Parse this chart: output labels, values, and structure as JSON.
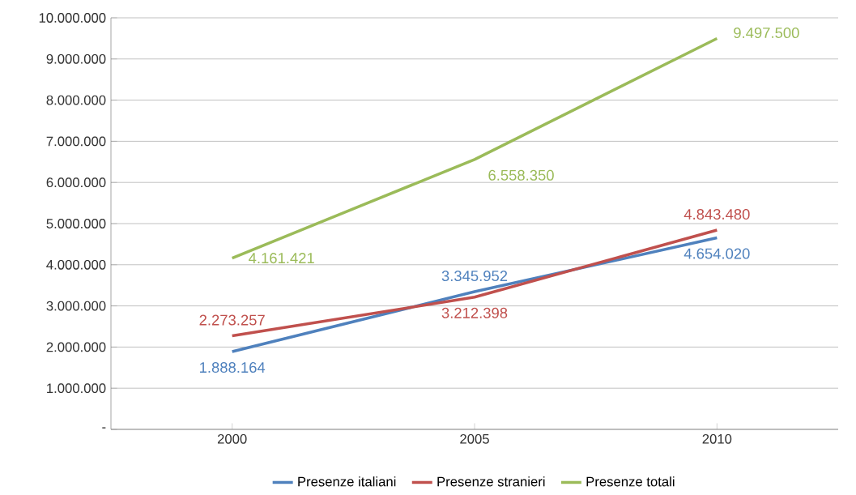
{
  "chart_data": {
    "type": "line",
    "categories": [
      "2000",
      "2005",
      "2010"
    ],
    "series": [
      {
        "name": "Presenze italiani",
        "color": "#4f81bd",
        "values": [
          1888164,
          3345952,
          4654020
        ],
        "value_labels": [
          "1.888.164",
          "3.345.952",
          "4.654.020"
        ]
      },
      {
        "name": "Presenze stranieri",
        "color": "#c0504d",
        "values": [
          2273257,
          3212398,
          4843480
        ],
        "value_labels": [
          "2.273.257",
          "3.212.398",
          "4.843.480"
        ]
      },
      {
        "name": "Presenze totali",
        "color": "#9bbb59",
        "values": [
          4161421,
          6558350,
          9497500
        ],
        "value_labels": [
          "4.161.421",
          "6.558.350",
          "9.497.500"
        ]
      }
    ],
    "ylim": [
      0,
      10000000
    ],
    "yticks": [
      {
        "value": 0,
        "label": "-"
      },
      {
        "value": 1000000,
        "label": "1.000.000"
      },
      {
        "value": 2000000,
        "label": "2.000.000"
      },
      {
        "value": 3000000,
        "label": "3.000.000"
      },
      {
        "value": 4000000,
        "label": "4.000.000"
      },
      {
        "value": 5000000,
        "label": "5.000.000"
      },
      {
        "value": 6000000,
        "label": "6.000.000"
      },
      {
        "value": 7000000,
        "label": "7.000.000"
      },
      {
        "value": 8000000,
        "label": "8.000.000"
      },
      {
        "value": 9000000,
        "label": "9.000.000"
      },
      {
        "value": 10000000,
        "label": "10.000.000"
      }
    ],
    "grid": "y",
    "legend": "bottom"
  }
}
